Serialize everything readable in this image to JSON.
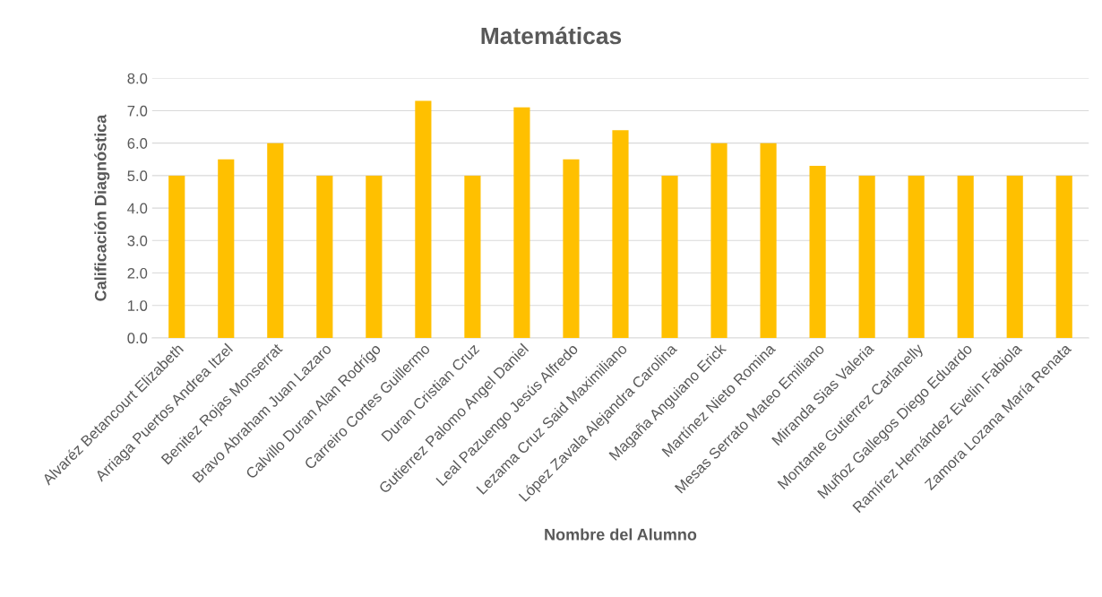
{
  "chart_data": {
    "type": "bar",
    "title": "Matemáticas",
    "xlabel": "Nombre del Alumno",
    "ylabel": "Calificación Diagnóstica",
    "categories": [
      "Alvaréz Betancourt Elizabeth",
      "Arriaga Puertos Andrea Itzel",
      "Benitez Rojas Monserrat",
      "Bravo Abraham Juan Lazaro",
      "Calvillo Duran Alan Rodrígo",
      "Carreiro Cortes Guillermo",
      "Duran Cristian Cruz",
      "Gutierrez Palomo Angel Daniel",
      "Leal Pazuengo Jesús Alfredo",
      "Lezama Cruz Said Maximiliano",
      "López Zavala Alejandra Carolina",
      "Magaña Anguiano Erick",
      "Martínez Nieto Romina",
      "Mesas Serrato Mateo Emiliano",
      "Miranda Sias Valeria",
      "Montante Gutierrez Carlanelly",
      "Muñoz Gallegos Diego Eduardo",
      "Ramírez Hernández Evelin Fabiola",
      "Zamora Lozana María Renata"
    ],
    "values": [
      5.0,
      5.5,
      6.0,
      5.0,
      5.0,
      7.3,
      5.0,
      7.1,
      5.5,
      6.4,
      5.0,
      6.0,
      6.0,
      5.3,
      5.0,
      5.0,
      5.0,
      5.0,
      5.0
    ],
    "color": "#ffc000",
    "ylim": [
      0,
      8
    ],
    "yticks": [
      {
        "value": 0,
        "label": "0.0"
      },
      {
        "value": 1,
        "label": "1.0"
      },
      {
        "value": 2,
        "label": "2.0"
      },
      {
        "value": 3,
        "label": "3.0"
      },
      {
        "value": 4,
        "label": "4.0"
      },
      {
        "value": 5,
        "label": "5.0"
      },
      {
        "value": 6,
        "label": "6.0"
      },
      {
        "value": 7,
        "label": "7.0"
      },
      {
        "value": 8,
        "label": "8.0"
      }
    ],
    "grid": "y",
    "legend": false
  }
}
